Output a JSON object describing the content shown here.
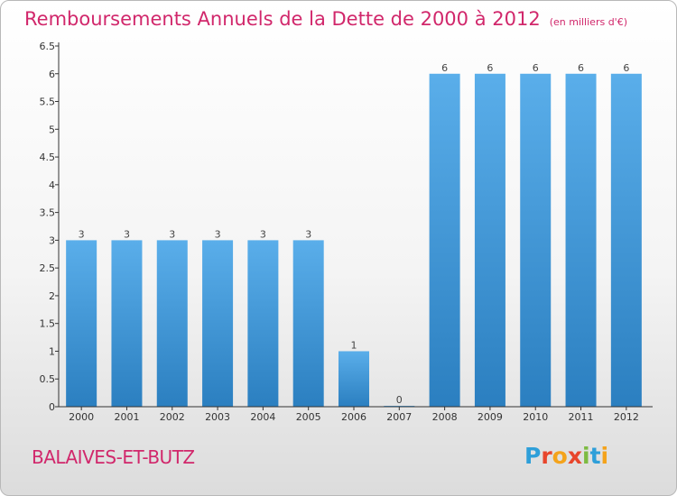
{
  "header": {
    "title": "Remboursements Annuels de la Dette de 2000 à 2012",
    "unit": "(en milliers d'€)"
  },
  "footer": {
    "commune": "BALAIVES-ET-BUTZ",
    "brand": {
      "letters": [
        "P",
        "r",
        "o",
        "x",
        "i",
        "t",
        "i"
      ],
      "colors": [
        "#2e9fd9",
        "#e8462c",
        "#f4a31b",
        "#e8462c",
        "#7dbb42",
        "#2e9fd9",
        "#f4a31b"
      ]
    }
  },
  "colors": {
    "bar_light": "#5aaeea",
    "bar_dark": "#2b7fc0",
    "title": "#d1276b",
    "axis": "#333333"
  },
  "chart_data": {
    "type": "bar",
    "categories": [
      "2000",
      "2001",
      "2002",
      "2003",
      "2004",
      "2005",
      "2006",
      "2007",
      "2008",
      "2009",
      "2010",
      "2011",
      "2012"
    ],
    "values": [
      3,
      3,
      3,
      3,
      3,
      3,
      1,
      0,
      6,
      6,
      6,
      6,
      6
    ],
    "value_labels": [
      "3",
      "3",
      "3",
      "3",
      "3",
      "3",
      "1",
      "0",
      "6",
      "6",
      "6",
      "6",
      "6"
    ],
    "ylim": [
      0,
      6.5
    ],
    "yticks": [
      0,
      0.5,
      1,
      1.5,
      2,
      2.5,
      3,
      3.5,
      4,
      4.5,
      5,
      5.5,
      6,
      6.5
    ],
    "ytick_labels": [
      "0",
      "0.5",
      "1",
      "1.5",
      "2",
      "2.5",
      "3",
      "3.5",
      "4",
      "4.5",
      "5",
      "5.5",
      "6",
      "6.5"
    ],
    "grid": false,
    "legend": "none"
  }
}
